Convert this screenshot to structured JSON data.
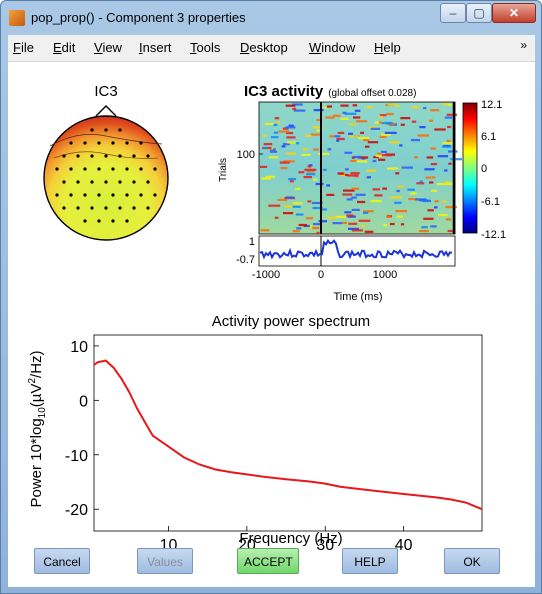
{
  "window": {
    "title": "pop_prop() - Component 3 properties",
    "buttons": {
      "minimize": "–",
      "maximize": "▢",
      "close": "✕"
    }
  },
  "menubar": {
    "items": [
      {
        "accel": "F",
        "rest": "ile"
      },
      {
        "accel": "E",
        "rest": "dit"
      },
      {
        "accel": "V",
        "rest": "iew"
      },
      {
        "accel": "I",
        "rest": "nsert"
      },
      {
        "accel": "T",
        "rest": "ools"
      },
      {
        "accel": "D",
        "rest": "esktop"
      },
      {
        "accel": "W",
        "rest": "indow"
      },
      {
        "accel": "H",
        "rest": "elp"
      }
    ],
    "overflow": "»"
  },
  "topomap": {
    "title": "IC3"
  },
  "erpimage": {
    "title": "IC3 activity",
    "subtitle": "(global offset 0.028)",
    "ylabel": "Trials",
    "ytick": "100",
    "erp_ytick_top": "1",
    "erp_ytick_bottom": "-0.7",
    "xticks": [
      "-1000",
      "0",
      "1000"
    ],
    "xlabel": "Time (ms)",
    "colorbar_ticks": [
      "12.1",
      "6.1",
      "0",
      "-6.1",
      "-12.1"
    ]
  },
  "chart_data": {
    "type": "line",
    "title": "Activity power spectrum",
    "xlabel": "Frequency (Hz)",
    "ylabel_parts": [
      "Power 10*log",
      "10",
      "(µV",
      "2",
      "/Hz)"
    ],
    "xlim": [
      0.5,
      50
    ],
    "ylim": [
      -24,
      12
    ],
    "xticks": [
      10,
      20,
      30,
      40
    ],
    "yticks": [
      10,
      0,
      -10,
      -20
    ],
    "series": [
      {
        "color": "#e8171b",
        "x": [
          0.5,
          1,
          2,
          3,
          4,
          5,
          6,
          7,
          8,
          10,
          12,
          14,
          16,
          18,
          20,
          22,
          25,
          28,
          30,
          32,
          35,
          38,
          40,
          42,
          44,
          46,
          48,
          50
        ],
        "y": [
          6.5,
          7.0,
          7.3,
          6.0,
          4.0,
          1.5,
          -1.5,
          -4.0,
          -6.5,
          -8.5,
          -10.5,
          -11.8,
          -12.7,
          -13.2,
          -13.6,
          -14.0,
          -14.5,
          -14.9,
          -15.3,
          -15.9,
          -16.4,
          -16.9,
          -17.2,
          -17.5,
          -17.8,
          -18.2,
          -18.8,
          -20.0
        ]
      }
    ]
  },
  "buttons": {
    "cancel": "Cancel",
    "values": "Values",
    "accept": "ACCEPT",
    "help": "HELP",
    "ok": "OK"
  }
}
